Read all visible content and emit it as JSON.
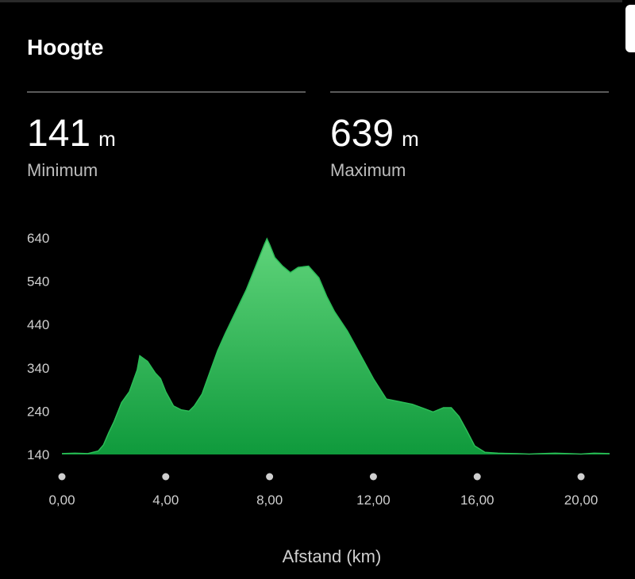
{
  "header": {
    "title": "Hoogte"
  },
  "stats": {
    "min": {
      "value": "141",
      "unit": "m",
      "label": "Minimum"
    },
    "max": {
      "value": "639",
      "unit": "m",
      "label": "Maximum"
    }
  },
  "colors": {
    "area_top": "#5fd47a",
    "area_bottom": "#0f9a3c",
    "line": "#2bbd57"
  },
  "chart_data": {
    "type": "area",
    "title": "",
    "xlabel": "Afstand (km)",
    "ylabel": "",
    "xlim": [
      0,
      21.1
    ],
    "ylim": [
      140,
      640
    ],
    "yticks": [
      140,
      240,
      340,
      440,
      540,
      640
    ],
    "ytick_labels": [
      "140",
      "240",
      "340",
      "440",
      "540",
      "640"
    ],
    "xticks": [
      0,
      4,
      8,
      12,
      16,
      20
    ],
    "xtick_labels": [
      "0,00",
      "4,00",
      "8,00",
      "12,00",
      "16,00",
      "20,00"
    ],
    "x": [
      0,
      0.5,
      1.0,
      1.4,
      1.6,
      1.8,
      2.0,
      2.3,
      2.6,
      2.9,
      3.0,
      3.3,
      3.6,
      3.8,
      4.0,
      4.3,
      4.6,
      4.9,
      5.1,
      5.4,
      5.7,
      6.0,
      6.3,
      6.7,
      7.1,
      7.5,
      7.8,
      7.9,
      8.0,
      8.2,
      8.5,
      8.8,
      9.1,
      9.5,
      9.9,
      10.2,
      10.5,
      11.0,
      11.5,
      12.0,
      12.5,
      13.0,
      13.5,
      14.0,
      14.3,
      14.7,
      15.0,
      15.3,
      15.6,
      15.9,
      16.3,
      16.8,
      17.5,
      18.0,
      18.5,
      19.0,
      19.5,
      20.0,
      20.5,
      21.1
    ],
    "y": [
      142,
      143,
      142,
      148,
      162,
      190,
      215,
      260,
      285,
      335,
      368,
      355,
      328,
      315,
      285,
      252,
      243,
      240,
      252,
      280,
      330,
      380,
      420,
      470,
      520,
      580,
      625,
      638,
      625,
      595,
      575,
      560,
      572,
      575,
      548,
      505,
      470,
      425,
      370,
      315,
      268,
      262,
      256,
      245,
      238,
      248,
      248,
      228,
      195,
      160,
      145,
      143,
      142,
      141,
      142,
      143,
      142,
      141,
      143,
      142
    ]
  }
}
